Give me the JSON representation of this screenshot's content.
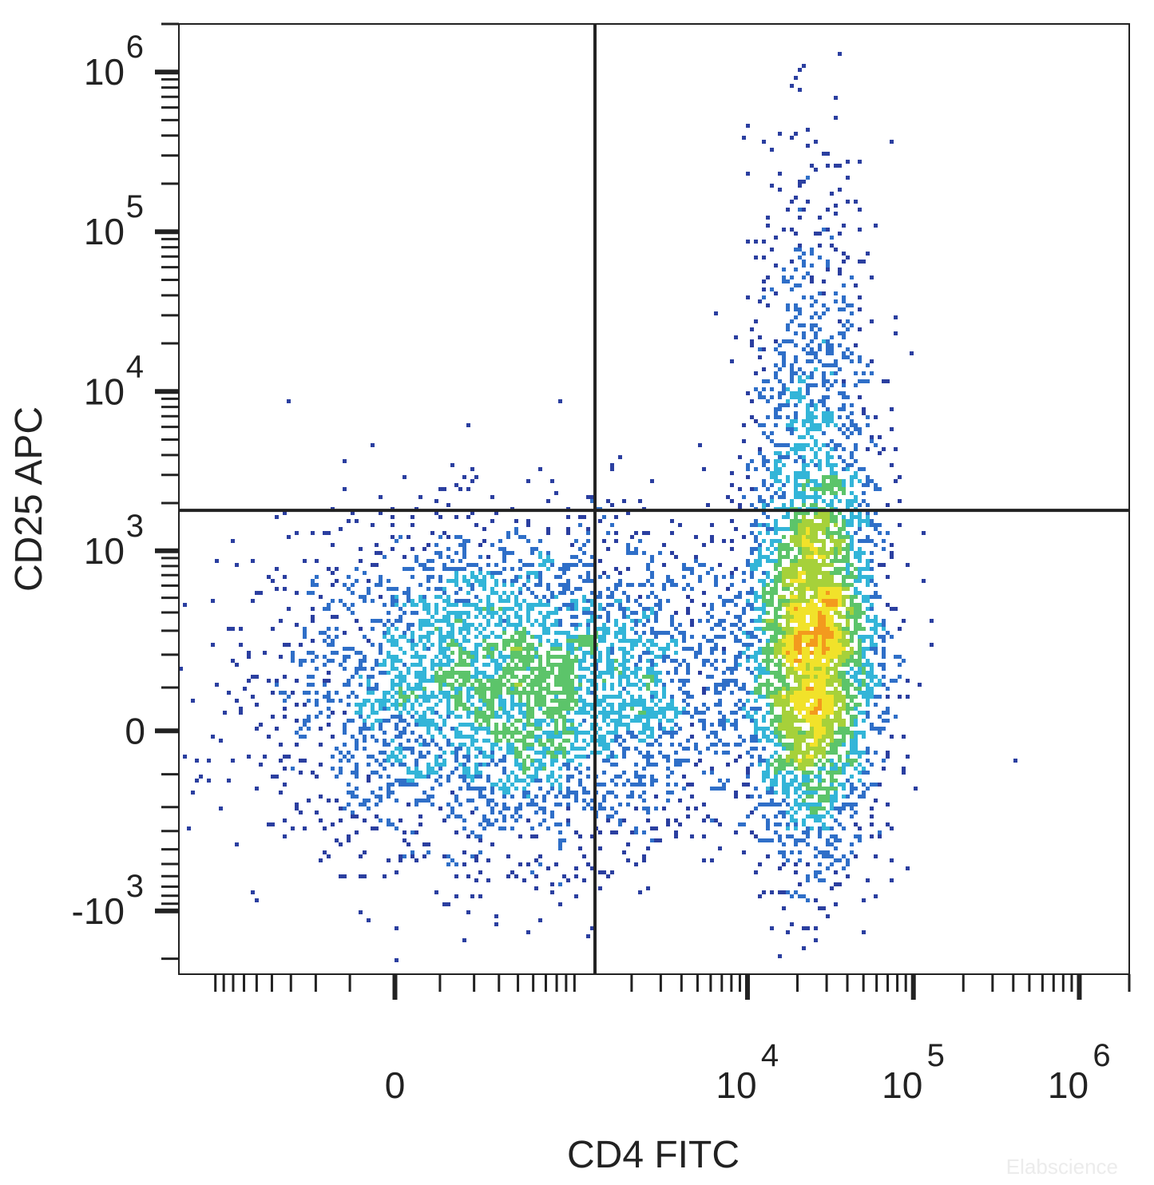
{
  "chart_data": {
    "type": "scatter",
    "subtype": "flow-cytometry-density-dot-plot",
    "xlabel": "CD4 FITC",
    "ylabel": "CD25 APC",
    "x_scale": "biexponential",
    "y_scale": "biexponential",
    "xlim": [
      -1500,
      2000000
    ],
    "ylim": [
      -2500,
      2000000
    ],
    "x_ticks": [
      {
        "value": 0,
        "base": "0",
        "exp": ""
      },
      {
        "value": 10000,
        "base": "10",
        "exp": "4"
      },
      {
        "value": 100000,
        "base": "10",
        "exp": "5"
      },
      {
        "value": 1000000,
        "base": "10",
        "exp": "6"
      }
    ],
    "y_ticks": [
      {
        "value": 1000000,
        "base": "10",
        "exp": "6"
      },
      {
        "value": 100000,
        "base": "10",
        "exp": "5"
      },
      {
        "value": 10000,
        "base": "10",
        "exp": "4"
      },
      {
        "value": 1000,
        "base": "10",
        "exp": "3"
      },
      {
        "value": 0,
        "base": "0",
        "exp": ""
      },
      {
        "value": -1000,
        "base": "-10",
        "exp": "3"
      }
    ],
    "quadrant_gate": {
      "x": 1200,
      "y": 1800
    },
    "populations": [
      {
        "name": "",
        "center": [
          400,
          100
        ],
        "spread_x": 0.35,
        "spread_y": 0.28,
        "events": 4200
      },
      {
        "name": "",
        "center": [
          25000,
          200
        ],
        "spread_x": 0.1,
        "spread_y": 0.35,
        "events": 3200
      },
      {
        "name": "",
        "center": [
          25000,
          5000
        ],
        "spread_x": 0.1,
        "spread_y": 0.5,
        "events": 900
      }
    ],
    "density_colors": [
      "#2b3fa0",
      "#2f6fc8",
      "#33b5d8",
      "#5cc46a",
      "#a6d13a",
      "#f1e22a",
      "#f39a1e",
      "#e8261c"
    ],
    "grid": false,
    "legend": "none"
  },
  "watermark": "Elabscience"
}
